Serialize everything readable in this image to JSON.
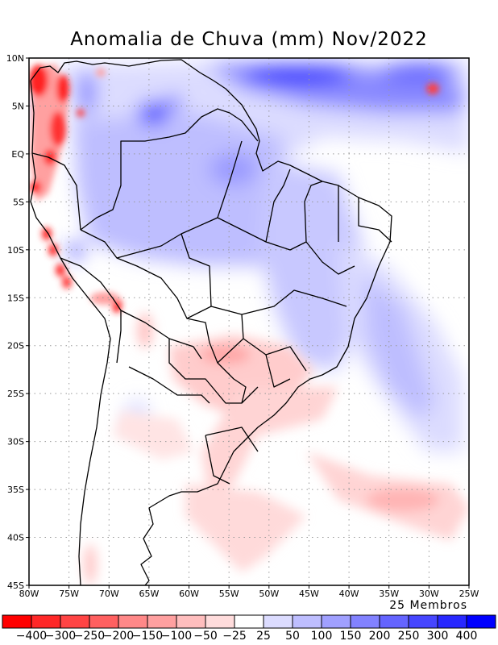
{
  "title": "Anomalia de Chuva (mm) Nov/2022",
  "members_label": "25 Membros",
  "map": {
    "lon_range": [
      -80,
      -25
    ],
    "lat_range": [
      -45,
      10
    ],
    "lon_ticks": [
      "80W",
      "75W",
      "70W",
      "65W",
      "60W",
      "55W",
      "50W",
      "45W",
      "40W",
      "35W",
      "30W",
      "25W"
    ],
    "lon_tick_values": [
      -80,
      -75,
      -70,
      -65,
      -60,
      -55,
      -50,
      -45,
      -40,
      -35,
      -30,
      -25
    ],
    "lat_ticks": [
      "10N",
      "5N",
      "EQ",
      "5S",
      "10S",
      "15S",
      "20S",
      "25S",
      "30S",
      "35S",
      "40S",
      "45S"
    ],
    "lat_tick_values": [
      10,
      5,
      0,
      -5,
      -10,
      -15,
      -20,
      -25,
      -30,
      -35,
      -40,
      -45
    ],
    "grid": "dotted"
  },
  "colorbar": {
    "labels": [
      "−400",
      "−300",
      "−250",
      "−200",
      "−150",
      "−100",
      "−50",
      "−25",
      "25",
      "50",
      "100",
      "150",
      "200",
      "250",
      "300",
      "400"
    ],
    "colors": [
      "#ff0000",
      "#ff2828",
      "#ff4444",
      "#ff6060",
      "#ff8888",
      "#ffa0a0",
      "#ffbebe",
      "#ffdcdc",
      "#ffffff",
      "#dcdcff",
      "#bebeff",
      "#a0a0ff",
      "#8282ff",
      "#6464ff",
      "#4646ff",
      "#2828ff",
      "#0000ff"
    ]
  }
}
